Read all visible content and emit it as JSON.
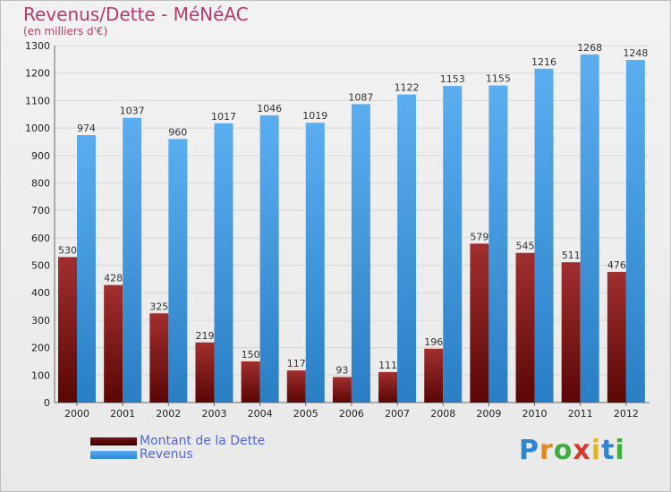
{
  "chart_data": {
    "type": "bar",
    "title": "Revenus/Dette - MéNéAC",
    "subtitle": "(en milliers d'€)",
    "categories": [
      "2000",
      "2001",
      "2002",
      "2003",
      "2004",
      "2005",
      "2006",
      "2007",
      "2008",
      "2009",
      "2010",
      "2011",
      "2012"
    ],
    "series": [
      {
        "name": "Montant de la Dette",
        "color": "#8a1a1a",
        "values": [
          530,
          428,
          325,
          219,
          150,
          117,
          93,
          111,
          196,
          579,
          545,
          511,
          476
        ]
      },
      {
        "name": "Revenus",
        "color": "#3b98e0",
        "values": [
          974,
          1037,
          960,
          1017,
          1046,
          1019,
          1087,
          1122,
          1153,
          1155,
          1216,
          1268,
          1248
        ]
      }
    ],
    "ylim": [
      0,
      1300
    ],
    "yticks": [
      "0",
      "100",
      "200",
      "300",
      "400",
      "500",
      "600",
      "700",
      "800",
      "900",
      "1000",
      "1100",
      "1200",
      "1300"
    ],
    "grid": true,
    "legend_position": "bottom-left"
  },
  "brand": {
    "letters": [
      "P",
      "r",
      "o",
      "x",
      "i",
      "t",
      "i"
    ],
    "colors": [
      "#2a86d6",
      "#e08a1e",
      "#3fae3f",
      "#d63a2a",
      "#e0b81e",
      "#2a86d6",
      "#3fae3f"
    ]
  }
}
